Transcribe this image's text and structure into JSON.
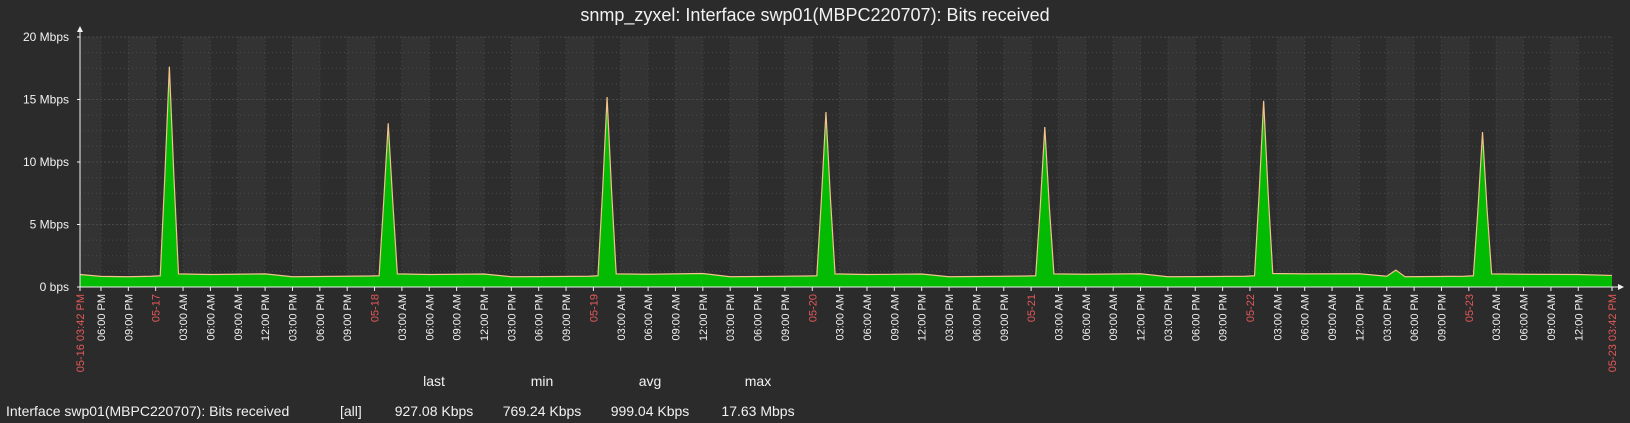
{
  "page": {
    "title": "snmp_zyxel: Interface swp01(MBPC220707): Bits received"
  },
  "colors": {
    "background": "#2b2b2b",
    "plot_light": "#333333",
    "plot_dark": "#2d2d2d",
    "grid": "#4a4a4a",
    "axis": "#f2f2f2",
    "text": "#f2f2f2",
    "date_label": "#e45959",
    "series_fill": "#00c800",
    "series_line": "#f3c38b"
  },
  "legend": {
    "series_label": "Interface swp01(MBPC220707): Bits received",
    "function_label": "[all]",
    "headers": {
      "last": "last",
      "min": "min",
      "avg": "avg",
      "max": "max"
    },
    "values": {
      "last": "927.08 Kbps",
      "min": "769.24 Kbps",
      "avg": "999.04 Kbps",
      "max": "17.63 Mbps"
    }
  },
  "chart_data": {
    "type": "area",
    "title": "snmp_zyxel: Interface swp01(MBPC220707): Bits received",
    "ylim": [
      0,
      20
    ],
    "y_unit": "Mbps",
    "y_ticks": [
      {
        "value": 0,
        "label": "0 bps"
      },
      {
        "value": 5,
        "label": "5 Mbps"
      },
      {
        "value": 10,
        "label": "10 Mbps"
      },
      {
        "value": 15,
        "label": "15 Mbps"
      },
      {
        "value": 20,
        "label": "20 Mbps"
      }
    ],
    "x_range": [
      "2024-05-16 15:42",
      "2024-05-23 15:42"
    ],
    "x_ticks": [
      {
        "x": "2024-05-16 15:42",
        "label": "05-16 03:42 PM",
        "kind": "range"
      },
      {
        "x": "2024-05-16 18:00",
        "label": "06:00 PM",
        "kind": "hour"
      },
      {
        "x": "2024-05-16 21:00",
        "label": "09:00 PM",
        "kind": "hour"
      },
      {
        "x": "2024-05-17 00:00",
        "label": "05-17",
        "kind": "date"
      },
      {
        "x": "2024-05-17 03:00",
        "label": "03:00 AM",
        "kind": "hour"
      },
      {
        "x": "2024-05-17 06:00",
        "label": "06:00 AM",
        "kind": "hour"
      },
      {
        "x": "2024-05-17 09:00",
        "label": "09:00 AM",
        "kind": "hour"
      },
      {
        "x": "2024-05-17 12:00",
        "label": "12:00 PM",
        "kind": "hour"
      },
      {
        "x": "2024-05-17 15:00",
        "label": "03:00 PM",
        "kind": "hour"
      },
      {
        "x": "2024-05-17 18:00",
        "label": "06:00 PM",
        "kind": "hour"
      },
      {
        "x": "2024-05-17 21:00",
        "label": "09:00 PM",
        "kind": "hour"
      },
      {
        "x": "2024-05-18 00:00",
        "label": "05-18",
        "kind": "date"
      },
      {
        "x": "2024-05-18 03:00",
        "label": "03:00 AM",
        "kind": "hour"
      },
      {
        "x": "2024-05-18 06:00",
        "label": "06:00 AM",
        "kind": "hour"
      },
      {
        "x": "2024-05-18 09:00",
        "label": "09:00 AM",
        "kind": "hour"
      },
      {
        "x": "2024-05-18 12:00",
        "label": "12:00 PM",
        "kind": "hour"
      },
      {
        "x": "2024-05-18 15:00",
        "label": "03:00 PM",
        "kind": "hour"
      },
      {
        "x": "2024-05-18 18:00",
        "label": "06:00 PM",
        "kind": "hour"
      },
      {
        "x": "2024-05-18 21:00",
        "label": "09:00 PM",
        "kind": "hour"
      },
      {
        "x": "2024-05-19 00:00",
        "label": "05-19",
        "kind": "date"
      },
      {
        "x": "2024-05-19 03:00",
        "label": "03:00 AM",
        "kind": "hour"
      },
      {
        "x": "2024-05-19 06:00",
        "label": "06:00 AM",
        "kind": "hour"
      },
      {
        "x": "2024-05-19 09:00",
        "label": "09:00 AM",
        "kind": "hour"
      },
      {
        "x": "2024-05-19 12:00",
        "label": "12:00 PM",
        "kind": "hour"
      },
      {
        "x": "2024-05-19 15:00",
        "label": "03:00 PM",
        "kind": "hour"
      },
      {
        "x": "2024-05-19 18:00",
        "label": "06:00 PM",
        "kind": "hour"
      },
      {
        "x": "2024-05-19 21:00",
        "label": "09:00 PM",
        "kind": "hour"
      },
      {
        "x": "2024-05-20 00:00",
        "label": "05-20",
        "kind": "date"
      },
      {
        "x": "2024-05-20 03:00",
        "label": "03:00 AM",
        "kind": "hour"
      },
      {
        "x": "2024-05-20 06:00",
        "label": "06:00 AM",
        "kind": "hour"
      },
      {
        "x": "2024-05-20 09:00",
        "label": "09:00 AM",
        "kind": "hour"
      },
      {
        "x": "2024-05-20 12:00",
        "label": "12:00 PM",
        "kind": "hour"
      },
      {
        "x": "2024-05-20 15:00",
        "label": "03:00 PM",
        "kind": "hour"
      },
      {
        "x": "2024-05-20 18:00",
        "label": "06:00 PM",
        "kind": "hour"
      },
      {
        "x": "2024-05-20 21:00",
        "label": "09:00 PM",
        "kind": "hour"
      },
      {
        "x": "2024-05-21 00:00",
        "label": "05-21",
        "kind": "date"
      },
      {
        "x": "2024-05-21 03:00",
        "label": "03:00 AM",
        "kind": "hour"
      },
      {
        "x": "2024-05-21 06:00",
        "label": "06:00 AM",
        "kind": "hour"
      },
      {
        "x": "2024-05-21 09:00",
        "label": "09:00 AM",
        "kind": "hour"
      },
      {
        "x": "2024-05-21 12:00",
        "label": "12:00 PM",
        "kind": "hour"
      },
      {
        "x": "2024-05-21 15:00",
        "label": "03:00 PM",
        "kind": "hour"
      },
      {
        "x": "2024-05-21 18:00",
        "label": "06:00 PM",
        "kind": "hour"
      },
      {
        "x": "2024-05-21 21:00",
        "label": "09:00 PM",
        "kind": "hour"
      },
      {
        "x": "2024-05-22 00:00",
        "label": "05-22",
        "kind": "date"
      },
      {
        "x": "2024-05-22 03:00",
        "label": "03:00 AM",
        "kind": "hour"
      },
      {
        "x": "2024-05-22 06:00",
        "label": "06:00 AM",
        "kind": "hour"
      },
      {
        "x": "2024-05-22 09:00",
        "label": "09:00 AM",
        "kind": "hour"
      },
      {
        "x": "2024-05-22 12:00",
        "label": "12:00 PM",
        "kind": "hour"
      },
      {
        "x": "2024-05-22 15:00",
        "label": "03:00 PM",
        "kind": "hour"
      },
      {
        "x": "2024-05-22 18:00",
        "label": "06:00 PM",
        "kind": "hour"
      },
      {
        "x": "2024-05-22 21:00",
        "label": "09:00 PM",
        "kind": "hour"
      },
      {
        "x": "2024-05-23 00:00",
        "label": "05-23",
        "kind": "date"
      },
      {
        "x": "2024-05-23 03:00",
        "label": "03:00 AM",
        "kind": "hour"
      },
      {
        "x": "2024-05-23 06:00",
        "label": "06:00 AM",
        "kind": "hour"
      },
      {
        "x": "2024-05-23 09:00",
        "label": "09:00 AM",
        "kind": "hour"
      },
      {
        "x": "2024-05-23 12:00",
        "label": "12:00 PM",
        "kind": "hour"
      },
      {
        "x": "2024-05-23 15:42",
        "label": "05-23 03:42 PM",
        "kind": "range"
      }
    ],
    "series": [
      {
        "name": "Interface swp01(MBPC220707): Bits received",
        "x": [
          "2024-05-16 15:42",
          "2024-05-16 18:00",
          "2024-05-16 21:00",
          "2024-05-16 23:30",
          "2024-05-17 00:30",
          "2024-05-17 01:00",
          "2024-05-17 01:30",
          "2024-05-17 02:00",
          "2024-05-17 02:30",
          "2024-05-17 06:00",
          "2024-05-17 12:00",
          "2024-05-17 15:00",
          "2024-05-17 18:00",
          "2024-05-17 23:30",
          "2024-05-18 00:30",
          "2024-05-18 01:00",
          "2024-05-18 01:30",
          "2024-05-18 02:00",
          "2024-05-18 02:30",
          "2024-05-18 06:00",
          "2024-05-18 12:00",
          "2024-05-18 15:00",
          "2024-05-18 18:00",
          "2024-05-18 23:30",
          "2024-05-19 00:30",
          "2024-05-19 01:00",
          "2024-05-19 01:30",
          "2024-05-19 02:00",
          "2024-05-19 02:30",
          "2024-05-19 06:00",
          "2024-05-19 12:00",
          "2024-05-19 15:00",
          "2024-05-19 18:00",
          "2024-05-19 23:30",
          "2024-05-20 00:30",
          "2024-05-20 01:00",
          "2024-05-20 01:30",
          "2024-05-20 02:00",
          "2024-05-20 02:30",
          "2024-05-20 06:00",
          "2024-05-20 12:00",
          "2024-05-20 15:00",
          "2024-05-20 18:00",
          "2024-05-20 23:30",
          "2024-05-21 00:30",
          "2024-05-21 01:00",
          "2024-05-21 01:30",
          "2024-05-21 02:00",
          "2024-05-21 02:30",
          "2024-05-21 06:00",
          "2024-05-21 12:00",
          "2024-05-21 15:00",
          "2024-05-21 18:00",
          "2024-05-21 23:30",
          "2024-05-22 00:30",
          "2024-05-22 01:00",
          "2024-05-22 01:30",
          "2024-05-22 02:00",
          "2024-05-22 02:30",
          "2024-05-22 06:00",
          "2024-05-22 12:00",
          "2024-05-22 15:00",
          "2024-05-22 16:00",
          "2024-05-22 17:00",
          "2024-05-22 23:30",
          "2024-05-23 00:30",
          "2024-05-23 01:00",
          "2024-05-23 01:30",
          "2024-05-23 02:00",
          "2024-05-23 02:30",
          "2024-05-23 06:00",
          "2024-05-23 12:00",
          "2024-05-23 15:42"
        ],
        "values": [
          1.0,
          0.85,
          0.82,
          0.86,
          0.9,
          8.8,
          17.63,
          8.8,
          1.05,
          1.0,
          1.05,
          0.82,
          0.84,
          0.88,
          0.9,
          6.8,
          13.1,
          6.8,
          1.05,
          1.0,
          1.04,
          0.82,
          0.83,
          0.86,
          0.9,
          7.6,
          15.2,
          7.6,
          1.05,
          1.02,
          1.08,
          0.82,
          0.84,
          0.88,
          0.9,
          7.0,
          14.0,
          7.0,
          1.05,
          1.0,
          1.04,
          0.82,
          0.84,
          0.88,
          0.9,
          6.4,
          12.8,
          6.4,
          1.05,
          1.02,
          1.06,
          0.82,
          0.83,
          0.86,
          0.9,
          7.4,
          14.9,
          7.4,
          1.08,
          1.05,
          1.06,
          0.86,
          1.35,
          0.82,
          0.86,
          0.9,
          6.2,
          12.4,
          6.2,
          1.05,
          1.02,
          1.0,
          0.927
        ]
      }
    ],
    "grid": true,
    "legend_position": "bottom-left"
  }
}
